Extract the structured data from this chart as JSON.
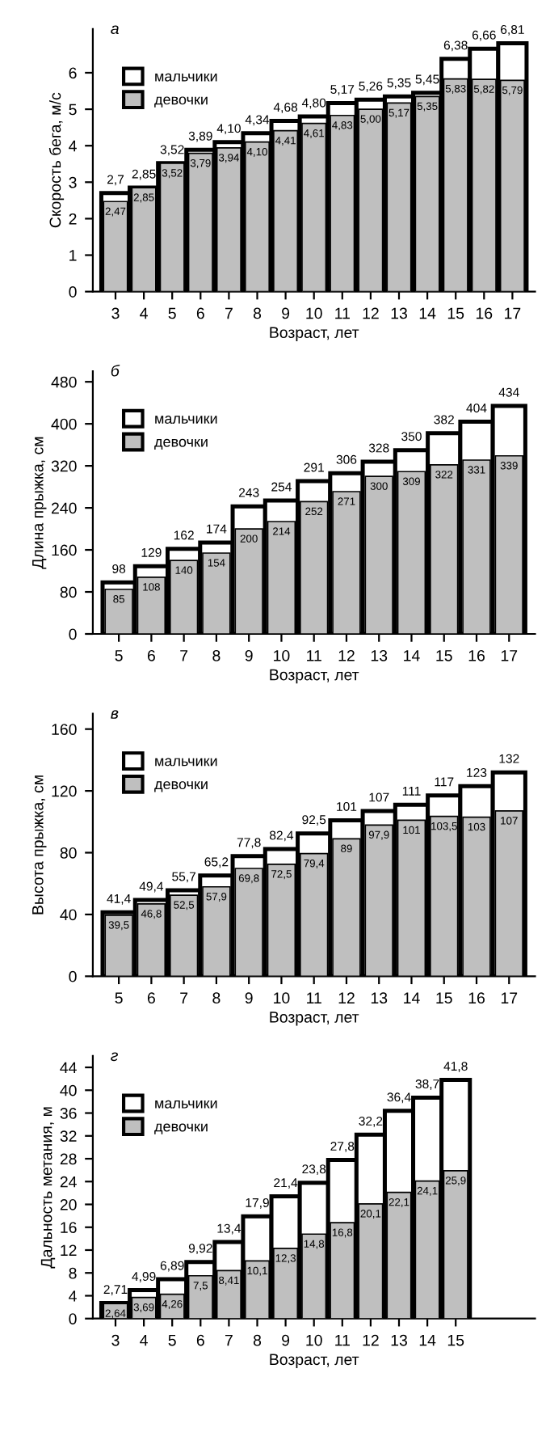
{
  "chart_data": [
    {
      "type": "bar",
      "title": "а",
      "xlabel": "Возраст, лет",
      "ylabel": "Скорость бега, м/с",
      "categories": [
        "3",
        "4",
        "5",
        "6",
        "7",
        "8",
        "9",
        "10",
        "11",
        "12",
        "13",
        "14",
        "15",
        "16",
        "17"
      ],
      "ylim": [
        0,
        7.2
      ],
      "yticks": [
        0,
        1,
        2,
        3,
        4,
        5,
        6
      ],
      "legend": "top left",
      "grid": false,
      "series": [
        {
          "name": "мальчики",
          "color": "#ffffff",
          "values": [
            2.7,
            2.85,
            3.52,
            3.89,
            4.1,
            4.34,
            4.68,
            4.8,
            5.17,
            5.26,
            5.35,
            5.45,
            6.38,
            6.66,
            6.81
          ],
          "value_labels": [
            "2,7",
            "2,85",
            "3,52",
            "3,89",
            "4,10",
            "4,34",
            "4,68",
            "4,80",
            "5,17",
            "5,26",
            "5,35",
            "5,45",
            "6,38",
            "6,66",
            "6,81"
          ]
        },
        {
          "name": "девочки",
          "color": "#bfbfbf",
          "values": [
            2.47,
            2.85,
            3.52,
            3.79,
            3.94,
            4.1,
            4.41,
            4.61,
            4.83,
            5.0,
            5.17,
            5.35,
            5.83,
            5.82,
            5.79
          ],
          "value_labels": [
            "2,47",
            "2,85",
            "3,52",
            "3,79",
            "3,94",
            "4,10",
            "4,41",
            "4,61",
            "4,83",
            "5,00",
            "5,17",
            "5,35",
            "5,83",
            "5,82",
            "5,79"
          ]
        }
      ]
    },
    {
      "type": "bar",
      "title": "б",
      "xlabel": "Возраст, лет",
      "ylabel": "Длина прыжка, см",
      "categories": [
        "5",
        "6",
        "7",
        "8",
        "9",
        "10",
        "11",
        "12",
        "13",
        "14",
        "15",
        "16",
        "17"
      ],
      "ylim": [
        0,
        500
      ],
      "yticks": [
        0,
        80,
        160,
        240,
        320,
        400,
        480
      ],
      "legend": "top left",
      "grid": false,
      "series": [
        {
          "name": "мальчики",
          "color": "#ffffff",
          "values": [
            98,
            129,
            162,
            174,
            243,
            254,
            291,
            306,
            328,
            350,
            382,
            404,
            434
          ],
          "value_labels": [
            "98",
            "129",
            "162",
            "174",
            "243",
            "254",
            "291",
            "306",
            "328",
            "350",
            "382",
            "404",
            "434"
          ]
        },
        {
          "name": "девочки",
          "color": "#bfbfbf",
          "values": [
            85,
            108,
            140,
            154,
            200,
            214,
            252,
            271,
            300,
            309,
            322,
            331,
            339
          ],
          "value_labels": [
            "85",
            "108",
            "140",
            "154",
            "200",
            "214",
            "252",
            "271",
            "300",
            "309",
            "322",
            "331",
            "339"
          ]
        }
      ]
    },
    {
      "type": "bar",
      "title": "в",
      "xlabel": "Возраст, лет",
      "ylabel": "Высота прыжка, см",
      "categories": [
        "5",
        "6",
        "7",
        "8",
        "9",
        "10",
        "11",
        "12",
        "13",
        "14",
        "15",
        "16",
        "17"
      ],
      "ylim": [
        0,
        170
      ],
      "yticks": [
        0,
        40,
        80,
        120,
        160
      ],
      "legend": "top left",
      "grid": false,
      "series": [
        {
          "name": "мальчики",
          "color": "#ffffff",
          "values": [
            41.4,
            49.4,
            55.7,
            65.2,
            77.8,
            82.4,
            92.5,
            101,
            107,
            111,
            117,
            123,
            132
          ],
          "value_labels": [
            "41,4",
            "49,4",
            "55,7",
            "65,2",
            "77,8",
            "82,4",
            "92,5",
            "101",
            "107",
            "111",
            "117",
            "123",
            "132"
          ]
        },
        {
          "name": "девочки",
          "color": "#bfbfbf",
          "values": [
            39.5,
            46.8,
            52.5,
            57.9,
            69.8,
            72.5,
            79.4,
            89,
            97.9,
            101,
            103.5,
            103,
            107
          ],
          "value_labels": [
            "39,5",
            "46,8",
            "52,5",
            "57,9",
            "69,8",
            "72,5",
            "79,4",
            "89",
            "97,9",
            "101",
            "103,5",
            "103",
            "107"
          ]
        }
      ]
    },
    {
      "type": "bar",
      "title": "г",
      "xlabel": "Возраст, лет",
      "ylabel": "Дальность метания, м",
      "categories": [
        "3",
        "4",
        "5",
        "6",
        "7",
        "8",
        "9",
        "10",
        "11",
        "12",
        "13",
        "14",
        "15"
      ],
      "ylim": [
        0,
        46
      ],
      "yticks": [
        0,
        4,
        8,
        12,
        16,
        20,
        24,
        28,
        32,
        36,
        40,
        44
      ],
      "legend": "top left",
      "grid": false,
      "series": [
        {
          "name": "мальчики",
          "color": "#ffffff",
          "values": [
            2.71,
            4.99,
            6.89,
            9.92,
            13.4,
            17.9,
            21.4,
            23.8,
            27.8,
            32.2,
            36.4,
            38.7,
            41.8
          ],
          "value_labels": [
            "2,71",
            "4,99",
            "6,89",
            "9,92",
            "13,4",
            "17,9",
            "21,4",
            "23,8",
            "27,8",
            "32,2",
            "36,4",
            "38,7",
            "41,8"
          ]
        },
        {
          "name": "девочки",
          "color": "#bfbfbf",
          "values": [
            2.64,
            3.69,
            4.26,
            7.5,
            8.41,
            10.1,
            12.3,
            14.8,
            16.8,
            20.1,
            22.1,
            24.1,
            25.9
          ],
          "value_labels": [
            "2,64",
            "3,69",
            "4,26",
            "7,5",
            "8,41",
            "10,1",
            "12,3",
            "14,8",
            "16,8",
            "20,1",
            "22,1",
            "24,1",
            "25,9"
          ]
        }
      ]
    }
  ]
}
